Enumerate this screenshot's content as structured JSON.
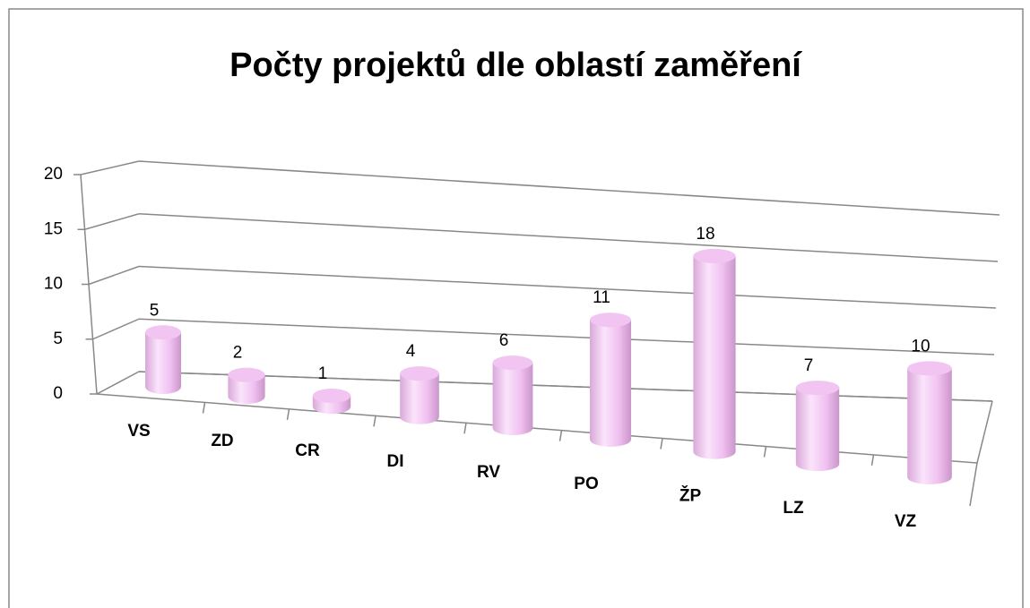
{
  "chart_data": {
    "type": "bar",
    "title": "Počty projektů dle oblastí zaměření",
    "categories": [
      "VS",
      "ZD",
      "CR",
      "DI",
      "RV",
      "PO",
      "ŽP",
      "LZ",
      "VZ"
    ],
    "values": [
      5,
      2,
      1,
      4,
      6,
      11,
      18,
      7,
      10
    ],
    "color": "#f2c4f2",
    "ylim": [
      0,
      20
    ],
    "yticks": [
      0,
      5,
      10,
      15,
      20
    ],
    "grid": true
  }
}
